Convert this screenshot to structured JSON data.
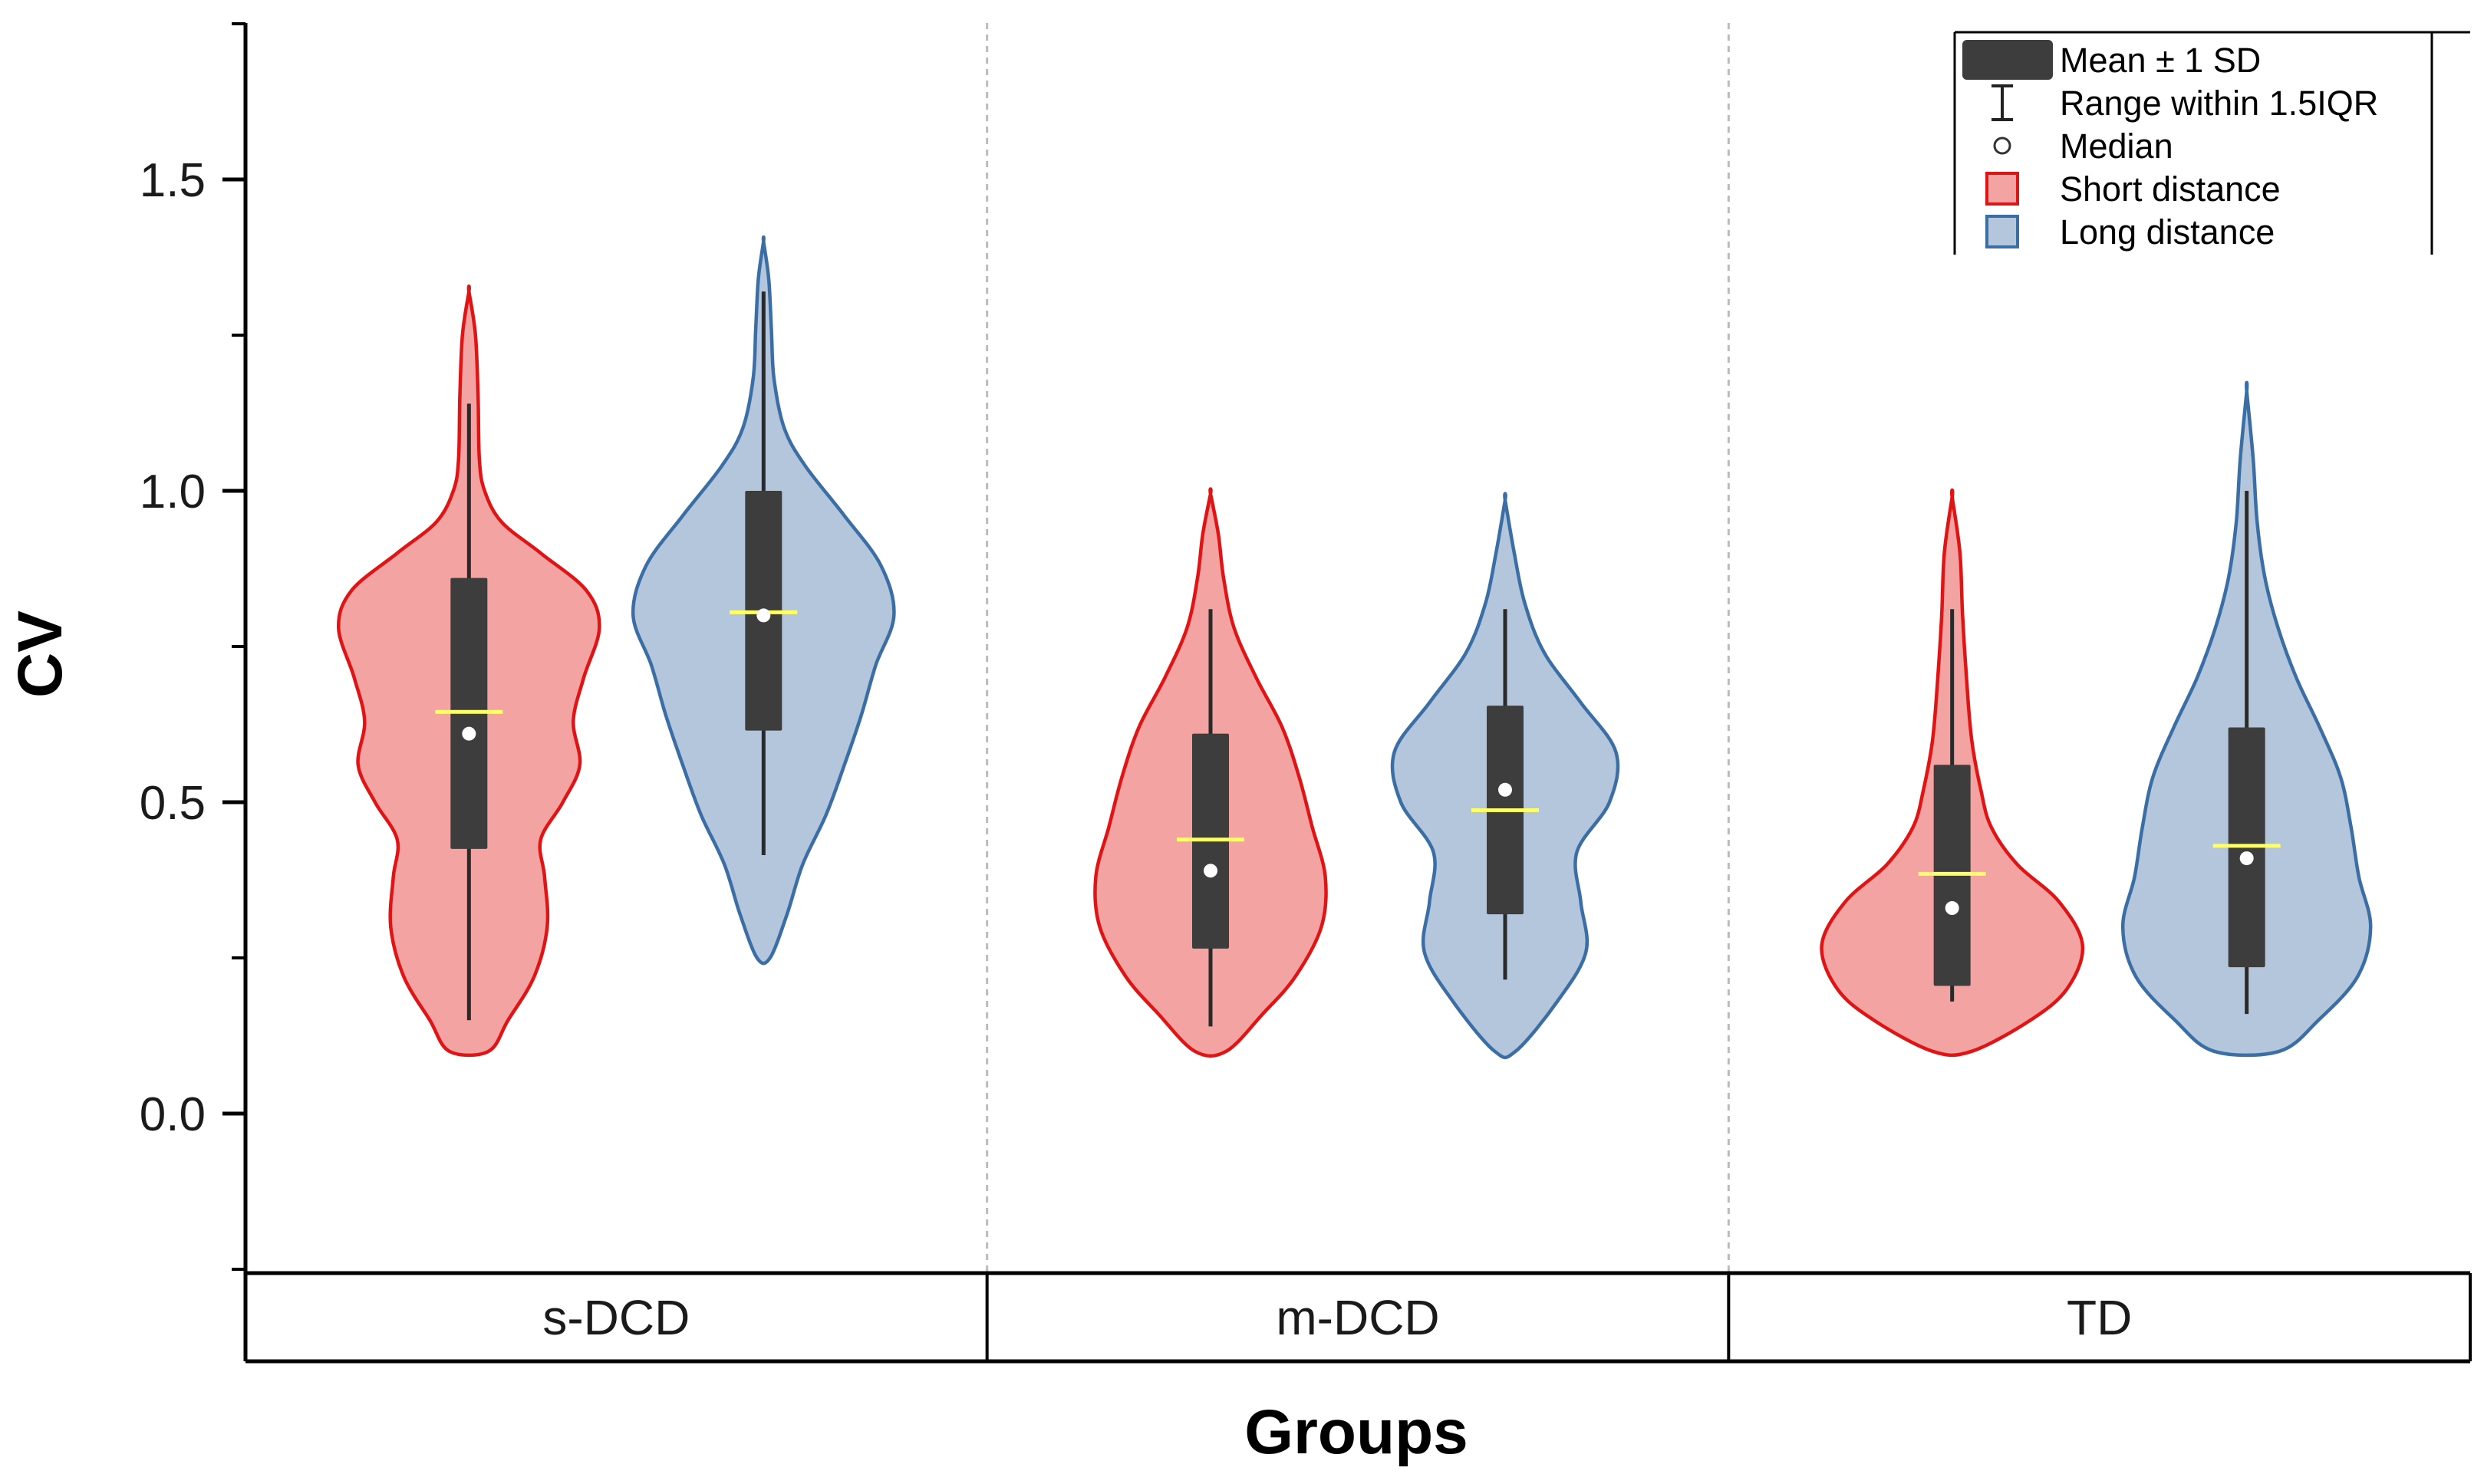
{
  "chart_data": {
    "type": "violin",
    "title": "",
    "xlabel": "Groups",
    "ylabel": "CV",
    "ylim": [
      -0.25,
      1.75
    ],
    "yticks": [
      0.0,
      0.5,
      1.0,
      1.5
    ],
    "ytick_labels": [
      "0.0",
      "0.5",
      "1.0",
      "1.5"
    ],
    "categories": [
      "s-DCD",
      "m-DCD",
      "TD"
    ],
    "colors": {
      "short_fill": "#f4a3a3",
      "short_line": "#e01414",
      "long_fill": "#b3c6dc",
      "long_line": "#3a6ea5",
      "box": "#3d3d3d",
      "mean_line": "#ffff66",
      "median_dot": "#ffffff",
      "separator": "#bbbbbb"
    },
    "legend": {
      "position": "top-right",
      "items": [
        {
          "key": "box",
          "label": "Mean ± 1 SD"
        },
        {
          "key": "whisker",
          "label": "Range within 1.5IQR"
        },
        {
          "key": "median",
          "label": "Median"
        },
        {
          "key": "short",
          "label": "Short distance"
        },
        {
          "key": "long",
          "label": "Long distance"
        }
      ]
    },
    "series": [
      {
        "name": "Short distance",
        "key": "short",
        "values": [
          {
            "group": "s-DCD",
            "mean": 0.645,
            "median": 0.61,
            "sd_low": 0.425,
            "sd_high": 0.86,
            "whisker_low": 0.15,
            "whisker_high": 1.14,
            "min": 0.1,
            "max": 1.32,
            "density": [
              [
                0.1,
                0.15
              ],
              [
                0.15,
                0.3
              ],
              [
                0.22,
                0.5
              ],
              [
                0.3,
                0.6
              ],
              [
                0.38,
                0.58
              ],
              [
                0.44,
                0.55
              ],
              [
                0.5,
                0.72
              ],
              [
                0.56,
                0.85
              ],
              [
                0.63,
                0.8
              ],
              [
                0.7,
                0.88
              ],
              [
                0.78,
                1.0
              ],
              [
                0.84,
                0.9
              ],
              [
                0.9,
                0.55
              ],
              [
                0.95,
                0.25
              ],
              [
                1.0,
                0.12
              ],
              [
                1.05,
                0.08
              ],
              [
                1.15,
                0.07
              ],
              [
                1.25,
                0.05
              ],
              [
                1.32,
                0.0
              ]
            ]
          },
          {
            "group": "m-DCD",
            "mean": 0.44,
            "median": 0.39,
            "sd_low": 0.265,
            "sd_high": 0.61,
            "whisker_low": 0.14,
            "whisker_high": 0.81,
            "min": 0.1,
            "max": 0.995,
            "density": [
              [
                0.1,
                0.12
              ],
              [
                0.16,
                0.4
              ],
              [
                0.22,
                0.65
              ],
              [
                0.3,
                0.85
              ],
              [
                0.38,
                0.88
              ],
              [
                0.46,
                0.78
              ],
              [
                0.54,
                0.68
              ],
              [
                0.62,
                0.55
              ],
              [
                0.7,
                0.35
              ],
              [
                0.78,
                0.18
              ],
              [
                0.86,
                0.1
              ],
              [
                0.93,
                0.06
              ],
              [
                0.995,
                0.0
              ]
            ]
          },
          {
            "group": "TD",
            "mean": 0.385,
            "median": 0.33,
            "sd_low": 0.205,
            "sd_high": 0.56,
            "whisker_low": 0.18,
            "whisker_high": 0.81,
            "min": 0.1,
            "max": 0.99,
            "density": [
              [
                0.1,
                0.15
              ],
              [
                0.15,
                0.6
              ],
              [
                0.2,
                0.88
              ],
              [
                0.27,
                1.0
              ],
              [
                0.34,
                0.82
              ],
              [
                0.4,
                0.5
              ],
              [
                0.46,
                0.3
              ],
              [
                0.52,
                0.22
              ],
              [
                0.6,
                0.15
              ],
              [
                0.7,
                0.11
              ],
              [
                0.8,
                0.08
              ],
              [
                0.9,
                0.06
              ],
              [
                0.99,
                0.0
              ]
            ]
          }
        ]
      },
      {
        "name": "Long distance",
        "key": "long",
        "values": [
          {
            "group": "s-DCD",
            "mean": 0.805,
            "median": 0.8,
            "sd_low": 0.615,
            "sd_high": 1.0,
            "whisker_low": 0.415,
            "whisker_high": 1.32,
            "min": 0.25,
            "max": 1.4,
            "density": [
              [
                0.25,
                0.05
              ],
              [
                0.32,
                0.18
              ],
              [
                0.4,
                0.3
              ],
              [
                0.48,
                0.48
              ],
              [
                0.56,
                0.62
              ],
              [
                0.64,
                0.75
              ],
              [
                0.72,
                0.86
              ],
              [
                0.8,
                1.0
              ],
              [
                0.88,
                0.9
              ],
              [
                0.96,
                0.62
              ],
              [
                1.04,
                0.32
              ],
              [
                1.1,
                0.16
              ],
              [
                1.18,
                0.08
              ],
              [
                1.26,
                0.06
              ],
              [
                1.34,
                0.04
              ],
              [
                1.4,
                0.0
              ]
            ]
          },
          {
            "group": "m-DCD",
            "mean": 0.487,
            "median": 0.52,
            "sd_low": 0.32,
            "sd_high": 0.655,
            "whisker_low": 0.215,
            "whisker_high": 0.81,
            "min": 0.1,
            "max": 0.985,
            "density": [
              [
                0.1,
                0.08
              ],
              [
                0.18,
                0.4
              ],
              [
                0.26,
                0.62
              ],
              [
                0.34,
                0.58
              ],
              [
                0.42,
                0.55
              ],
              [
                0.5,
                0.8
              ],
              [
                0.58,
                0.85
              ],
              [
                0.66,
                0.58
              ],
              [
                0.74,
                0.3
              ],
              [
                0.82,
                0.15
              ],
              [
                0.9,
                0.07
              ],
              [
                0.985,
                0.0
              ]
            ]
          },
          {
            "group": "TD",
            "mean": 0.43,
            "median": 0.41,
            "sd_low": 0.235,
            "sd_high": 0.62,
            "whisker_low": 0.16,
            "whisker_high": 1.0,
            "min": 0.1,
            "max": 1.16,
            "density": [
              [
                0.1,
                0.25
              ],
              [
                0.15,
                0.55
              ],
              [
                0.22,
                0.85
              ],
              [
                0.3,
                0.95
              ],
              [
                0.38,
                0.86
              ],
              [
                0.46,
                0.8
              ],
              [
                0.54,
                0.72
              ],
              [
                0.62,
                0.56
              ],
              [
                0.7,
                0.38
              ],
              [
                0.78,
                0.24
              ],
              [
                0.86,
                0.14
              ],
              [
                0.95,
                0.08
              ],
              [
                1.05,
                0.05
              ],
              [
                1.16,
                0.0
              ]
            ]
          }
        ]
      }
    ]
  }
}
